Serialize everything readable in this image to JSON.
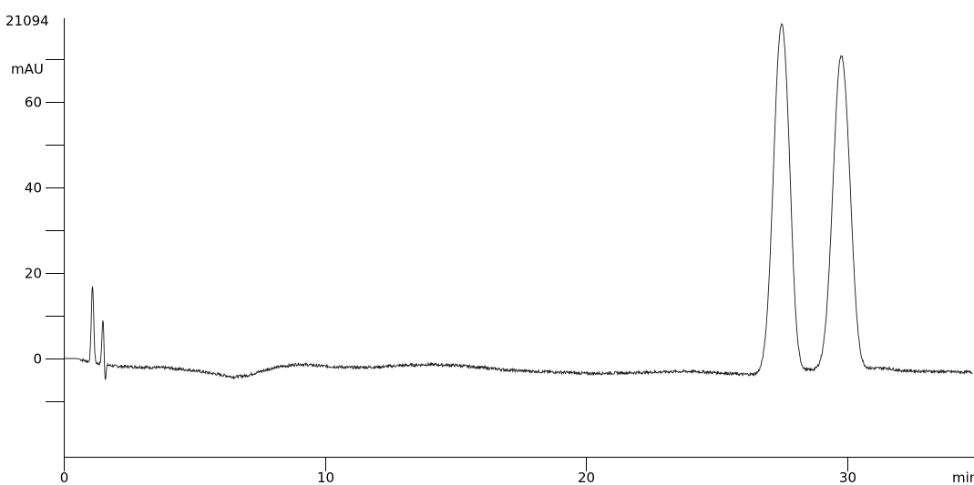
{
  "chart_data": {
    "type": "line",
    "title": "",
    "header_value": "21094",
    "xlabel": "min",
    "ylabel": "mAU",
    "xlim": [
      0,
      34.8
    ],
    "ylim": [
      -23,
      79
    ],
    "x_major_ticks": [
      0,
      10,
      20,
      30
    ],
    "x_tick_labels": [
      "0",
      "10",
      "20",
      "30"
    ],
    "y_major_ticks": [
      0,
      20,
      40,
      60
    ],
    "y_tick_labels": [
      "0",
      "20",
      "40",
      "60"
    ],
    "y_minor_ticks": [
      -10,
      10,
      30,
      50,
      70
    ],
    "grid": false,
    "series": [
      {
        "baseline": [
          [
            0,
            0
          ],
          [
            0.5,
            0
          ],
          [
            1.0,
            -0.8
          ],
          [
            1.6,
            -1.5
          ],
          [
            2.0,
            -1.8
          ],
          [
            3.0,
            -2.0
          ],
          [
            4.0,
            -2.2
          ],
          [
            5.0,
            -2.8
          ],
          [
            6.0,
            -3.8
          ],
          [
            6.5,
            -4.3
          ],
          [
            7.0,
            -4.0
          ],
          [
            8.0,
            -2.2
          ],
          [
            9.0,
            -1.3
          ],
          [
            10.0,
            -1.8
          ],
          [
            11.0,
            -2.1
          ],
          [
            12.0,
            -2.0
          ],
          [
            13.0,
            -1.6
          ],
          [
            14.0,
            -1.4
          ],
          [
            15.0,
            -1.6
          ],
          [
            16.0,
            -2.1
          ],
          [
            17.0,
            -2.7
          ],
          [
            18.0,
            -3.0
          ],
          [
            19.0,
            -3.2
          ],
          [
            20.0,
            -3.5
          ],
          [
            21.0,
            -3.4
          ],
          [
            22.0,
            -3.3
          ],
          [
            23.0,
            -3.1
          ],
          [
            24.0,
            -3.0
          ],
          [
            25.0,
            -3.3
          ],
          [
            26.0,
            -3.7
          ],
          [
            26.6,
            -3.7
          ],
          [
            27.0,
            -3.0
          ],
          [
            31.5,
            -2.2
          ],
          [
            32.0,
            -2.8
          ],
          [
            33.0,
            -3.0
          ],
          [
            34.8,
            -3.2
          ]
        ],
        "peaks": [
          {
            "rt": 1.1,
            "height": 18.0,
            "width": 0.045
          },
          {
            "rt": 1.5,
            "height": 10.5,
            "width": 0.04
          },
          {
            "rt": 27.45,
            "height": 77.7,
            "width": 0.28
          },
          {
            "rt": 27.75,
            "height": 12.0,
            "width": 0.18
          },
          {
            "rt": 29.75,
            "height": 71.5,
            "width": 0.3
          },
          {
            "rt": 30.1,
            "height": 8.0,
            "width": 0.2
          }
        ],
        "dips": [
          {
            "rt": 1.58,
            "depth": -4.5,
            "width": 0.03
          }
        ],
        "noise_amplitude": 0.35
      }
    ]
  }
}
